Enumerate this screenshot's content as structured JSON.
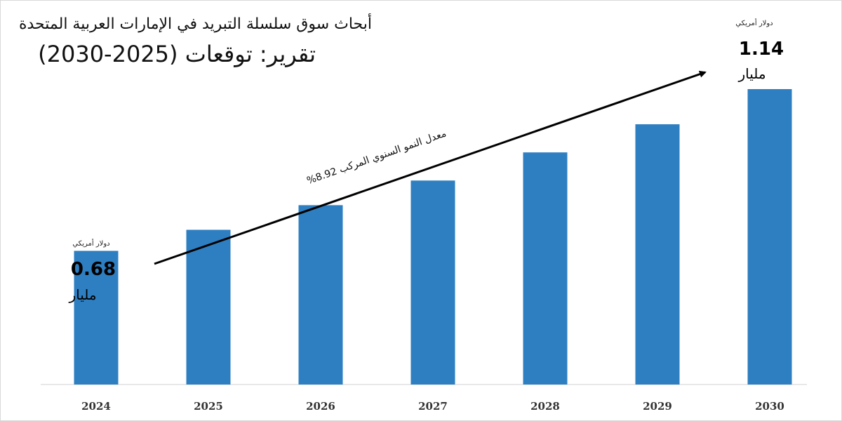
{
  "chart_data": {
    "type": "bar",
    "title": "أبحاث سوق سلسلة التبريد في الإمارات العربية المتحدة",
    "subtitle": "تقرير: توقعات (2025-2030)",
    "categories": [
      "2024",
      "2025",
      "2026",
      "2027",
      "2028",
      "2029",
      "2030"
    ],
    "values": [
      0.68,
      0.74,
      0.81,
      0.88,
      0.96,
      1.04,
      1.14
    ],
    "ylim": [
      0.3,
      1.14
    ],
    "grid": false,
    "bar_color": "#2e7fc2",
    "annotations": {
      "start": {
        "currency": "دولار أمريكي",
        "value": "0.68",
        "unit": "مليار"
      },
      "end": {
        "currency": "دولار أمريكي",
        "value": "1.14",
        "unit": "مليار"
      },
      "cagr": "معدل النمو السنوي المركب 8.92%"
    }
  }
}
